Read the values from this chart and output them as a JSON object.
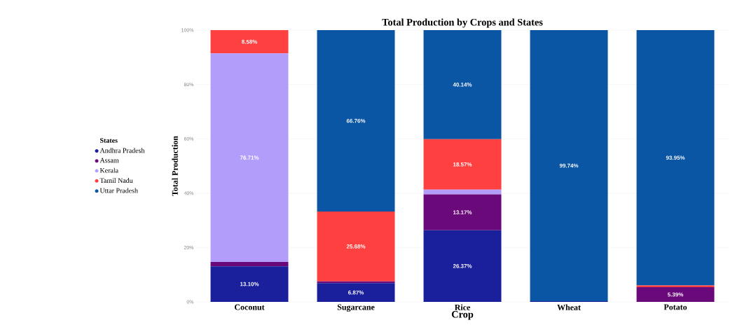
{
  "chart_data": {
    "type": "bar",
    "title": "Total Production by Crops and States",
    "xlabel": "Crop",
    "ylabel": "Total Production",
    "legend_title": "States",
    "categories": [
      "Coconut",
      "Sugarcane",
      "Rice",
      "Wheat",
      "Potato"
    ],
    "stacked": true,
    "grid": "y",
    "legend": "left",
    "ylim": [
      0,
      100
    ],
    "yticks": [
      {
        "value": 0,
        "label": "0%"
      },
      {
        "value": 20,
        "label": "20%"
      },
      {
        "value": 40,
        "label": "40%"
      },
      {
        "value": 60,
        "label": "60%"
      },
      {
        "value": 80,
        "label": "80%"
      },
      {
        "value": 100,
        "label": "100%"
      }
    ],
    "series": [
      {
        "name": "Andhra Pradesh",
        "color": "#1a1f9c",
        "values": [
          13.1,
          6.87,
          26.37,
          0.26,
          0
        ],
        "value_labels": [
          "13.10%",
          "6.87%",
          "26.37%",
          null,
          null
        ]
      },
      {
        "name": "Assam",
        "color": "#6a0a7a",
        "values": [
          1.61,
          0.69,
          13.17,
          0,
          5.39
        ],
        "value_labels": [
          null,
          null,
          "13.17%",
          null,
          "5.39%"
        ]
      },
      {
        "name": "Kerala",
        "color": "#b39dfb",
        "values": [
          76.71,
          0,
          1.75,
          0,
          0
        ],
        "value_labels": [
          "76.71%",
          null,
          null,
          null,
          null
        ]
      },
      {
        "name": "Tamil Nadu",
        "color": "#ff4040",
        "values": [
          8.58,
          25.68,
          18.57,
          0,
          0.66
        ],
        "value_labels": [
          "8.58%",
          "25.68%",
          "18.57%",
          null,
          null
        ]
      },
      {
        "name": "Uttar Pradesh",
        "color": "#0a56a4",
        "values": [
          0,
          66.76,
          40.14,
          99.74,
          93.95
        ],
        "value_labels": [
          null,
          "66.76%",
          "40.14%",
          "99.74%",
          "93.95%"
        ]
      }
    ]
  }
}
